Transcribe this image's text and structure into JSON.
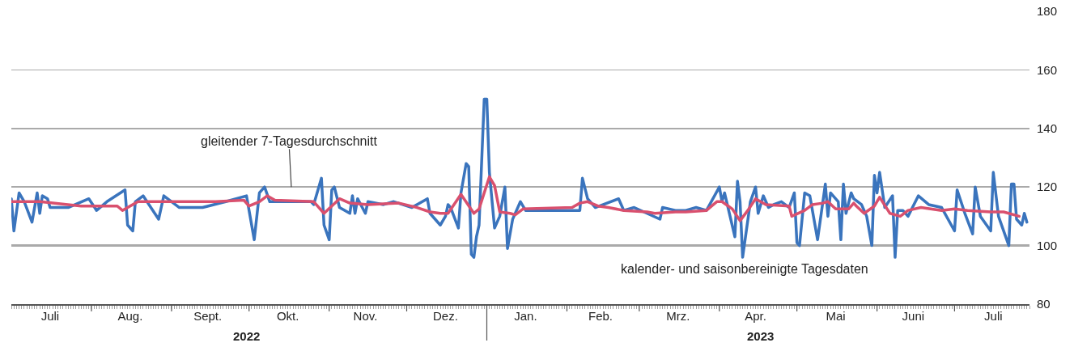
{
  "chart_data": {
    "type": "line",
    "legend": false,
    "grid": "y",
    "marker": "none",
    "line_style": "solid",
    "xlim": [
      "2022-07-01",
      "2023-07-30"
    ],
    "xticks": [
      {
        "value": "2022-07-16",
        "label": "Juli"
      },
      {
        "value": "2022-08-16",
        "label": "Aug."
      },
      {
        "value": "2022-09-15",
        "label": "Sept."
      },
      {
        "value": "2022-10-16",
        "label": "Okt."
      },
      {
        "value": "2022-11-15",
        "label": "Nov."
      },
      {
        "value": "2022-12-16",
        "label": "Dez."
      },
      {
        "value": "2023-01-16",
        "label": "Jan."
      },
      {
        "value": "2023-02-14",
        "label": "Feb."
      },
      {
        "value": "2023-03-16",
        "label": "Mrz."
      },
      {
        "value": "2023-04-15",
        "label": "Apr."
      },
      {
        "value": "2023-05-16",
        "label": "Mai"
      },
      {
        "value": "2023-06-15",
        "label": "Juni"
      },
      {
        "value": "2023-07-16",
        "label": "Juli"
      },
      {
        "value": "2022-08-01",
        "label": null
      },
      {
        "value": "2022-09-01",
        "label": null
      },
      {
        "value": "2022-10-01",
        "label": null
      },
      {
        "value": "2022-11-01",
        "label": null
      },
      {
        "value": "2022-12-01",
        "label": null
      },
      {
        "value": "2023-02-01",
        "label": null
      },
      {
        "value": "2023-03-01",
        "label": null
      },
      {
        "value": "2023-04-01",
        "label": null
      },
      {
        "value": "2023-05-01",
        "label": null
      },
      {
        "value": "2023-06-01",
        "label": null
      },
      {
        "value": "2023-07-01",
        "label": null
      }
    ],
    "x2lim": [
      "2022-07-01",
      "2023-07-30"
    ],
    "x2ticks": [
      {
        "value": "2022-09-30",
        "label": "2022"
      },
      {
        "value": "2023-04-17",
        "label": "2023"
      },
      {
        "value": "2023-01-01",
        "label": null
      }
    ],
    "ylim": [
      80,
      180
    ],
    "yticks": [
      80,
      100,
      120,
      140,
      160,
      180
    ],
    "ref_lines": [
      {
        "axis": "y",
        "value": 100,
        "color": "#555555"
      }
    ],
    "series": [
      {
        "name": "kalender- und saisonbereinigte Tagesdaten",
        "color": "#3a74bd",
        "x": [
          "2022-07-01",
          "2022-07-02",
          "2022-07-04",
          "2022-07-06",
          "2022-07-09",
          "2022-07-11",
          "2022-07-12",
          "2022-07-13",
          "2022-07-15",
          "2022-07-16",
          "2022-07-23",
          "2022-07-31",
          "2022-08-03",
          "2022-08-07",
          "2022-08-14",
          "2022-08-15",
          "2022-08-17",
          "2022-08-18",
          "2022-08-21",
          "2022-08-27",
          "2022-08-29",
          "2022-09-04",
          "2022-09-13",
          "2022-09-22",
          "2022-09-30",
          "2022-10-03",
          "2022-10-05",
          "2022-10-07",
          "2022-10-09",
          "2022-10-25",
          "2022-10-26",
          "2022-10-29",
          "2022-10-30",
          "2022-11-01",
          "2022-11-02",
          "2022-11-03",
          "2022-11-05",
          "2022-11-09",
          "2022-11-10",
          "2022-11-11",
          "2022-11-12",
          "2022-11-15",
          "2022-11-16",
          "2022-11-22",
          "2022-11-26",
          "2022-12-03",
          "2022-12-09",
          "2022-12-10",
          "2022-12-14",
          "2022-12-16",
          "2022-12-17",
          "2022-12-18",
          "2022-12-21",
          "2022-12-22",
          "2022-12-24",
          "2022-12-25",
          "2022-12-26",
          "2022-12-27",
          "2022-12-28",
          "2022-12-29",
          "2022-12-31",
          "2023-01-01",
          "2023-01-02",
          "2023-01-04",
          "2023-01-06",
          "2023-01-08",
          "2023-01-09",
          "2023-01-11",
          "2023-01-14",
          "2023-01-16",
          "2023-02-06",
          "2023-02-07",
          "2023-02-09",
          "2023-02-12",
          "2023-02-21",
          "2023-02-23",
          "2023-02-27",
          "2023-03-04",
          "2023-03-09",
          "2023-03-10",
          "2023-03-15",
          "2023-03-19",
          "2023-03-23",
          "2023-03-27",
          "2023-04-01",
          "2023-04-02",
          "2023-04-03",
          "2023-04-07",
          "2023-04-08",
          "2023-04-09",
          "2023-04-10",
          "2023-04-13",
          "2023-04-15",
          "2023-04-16",
          "2023-04-18",
          "2023-04-20",
          "2023-04-22",
          "2023-04-25",
          "2023-04-28",
          "2023-04-30",
          "2023-05-01",
          "2023-05-02",
          "2023-05-04",
          "2023-05-06",
          "2023-05-09",
          "2023-05-12",
          "2023-05-13",
          "2023-05-14",
          "2023-05-17",
          "2023-05-18",
          "2023-05-19",
          "2023-05-20",
          "2023-05-22",
          "2023-05-23",
          "2023-05-26",
          "2023-05-28",
          "2023-05-30",
          "2023-05-31",
          "2023-06-01",
          "2023-06-02",
          "2023-06-04",
          "2023-06-07",
          "2023-06-08",
          "2023-06-09",
          "2023-06-11",
          "2023-06-13",
          "2023-06-17",
          "2023-06-21",
          "2023-06-26",
          "2023-07-01",
          "2023-07-02",
          "2023-07-05",
          "2023-07-08",
          "2023-07-09",
          "2023-07-11",
          "2023-07-15",
          "2023-07-16",
          "2023-07-18",
          "2023-07-22",
          "2023-07-23",
          "2023-07-24",
          "2023-07-25",
          "2023-07-27",
          "2023-07-28",
          "2023-07-29"
        ],
        "values": [
          116,
          105,
          118,
          115,
          108,
          118,
          111,
          117,
          116,
          113,
          113,
          116,
          112,
          115,
          119,
          107,
          105,
          115,
          117,
          109,
          117,
          113,
          113,
          115,
          117,
          102,
          118,
          120,
          115,
          115,
          114,
          123,
          107,
          102,
          119,
          120,
          113,
          111,
          117,
          111,
          116,
          111,
          115,
          114,
          115,
          113,
          116,
          111,
          107,
          110,
          114,
          113,
          106,
          118,
          128,
          127,
          97,
          96,
          103,
          107,
          150,
          150,
          125,
          106,
          110,
          120,
          99,
          109,
          115,
          112,
          112,
          123,
          116,
          113,
          116,
          112,
          113,
          111,
          109,
          113,
          112,
          112,
          113,
          112,
          120,
          115,
          118,
          103,
          122,
          115,
          96,
          115,
          120,
          111,
          117,
          113,
          114,
          115,
          113,
          118,
          101,
          100,
          118,
          117,
          102,
          121,
          110,
          118,
          115,
          102,
          121,
          111,
          118,
          116,
          114,
          110,
          100,
          124,
          118,
          125,
          113,
          117,
          96,
          112,
          112,
          110,
          117,
          114,
          113,
          105,
          119,
          111,
          104,
          120,
          110,
          105,
          125,
          110,
          100,
          121,
          121,
          109,
          107,
          111,
          108
        ]
      },
      {
        "name": "gleitender 7-Tagesdurchschnitt",
        "color": "#d9506e",
        "x": [
          "2022-07-01",
          "2022-07-12",
          "2022-07-28",
          "2022-08-11",
          "2022-08-13",
          "2022-08-19",
          "2022-08-30",
          "2022-09-18",
          "2022-09-29",
          "2022-10-01",
          "2022-10-05",
          "2022-10-08",
          "2022-10-11",
          "2022-10-26",
          "2022-10-30",
          "2022-11-02",
          "2022-11-05",
          "2022-11-09",
          "2022-11-16",
          "2022-11-28",
          "2022-12-05",
          "2022-12-10",
          "2022-12-14",
          "2022-12-17",
          "2022-12-22",
          "2022-12-27",
          "2022-12-29",
          "2023-01-02",
          "2023-01-04",
          "2023-01-06",
          "2023-01-10",
          "2023-01-12",
          "2023-01-15",
          "2023-02-03",
          "2023-02-06",
          "2023-02-09",
          "2023-02-13",
          "2023-02-17",
          "2023-02-23",
          "2023-03-04",
          "2023-03-07",
          "2023-03-15",
          "2023-03-19",
          "2023-03-27",
          "2023-03-31",
          "2023-04-02",
          "2023-04-06",
          "2023-04-09",
          "2023-04-12",
          "2023-04-15",
          "2023-04-19",
          "2023-04-28",
          "2023-04-29",
          "2023-05-04",
          "2023-05-07",
          "2023-05-11",
          "2023-05-13",
          "2023-05-16",
          "2023-05-21",
          "2023-05-23",
          "2023-05-24",
          "2023-05-27",
          "2023-05-31",
          "2023-06-02",
          "2023-06-06",
          "2023-06-10",
          "2023-06-13",
          "2023-06-18",
          "2023-06-26",
          "2023-07-01",
          "2023-07-06",
          "2023-07-15",
          "2023-07-20",
          "2023-07-26"
        ],
        "values": [
          115,
          115,
          113.5,
          113.5,
          112,
          115,
          115,
          115,
          115.5,
          113.5,
          115,
          117,
          115.5,
          115,
          111,
          113.5,
          116,
          114.5,
          114,
          114.5,
          113,
          111.5,
          111,
          111,
          117.5,
          111,
          112.5,
          123.5,
          120.5,
          111.5,
          111,
          110.5,
          112.5,
          113,
          114.5,
          115,
          113.5,
          113,
          112,
          111.5,
          111,
          111.5,
          111.5,
          112,
          115,
          115,
          112.5,
          108.5,
          112,
          116,
          114,
          113.5,
          110,
          112,
          114,
          114.5,
          115,
          112.5,
          112.5,
          114.5,
          113.5,
          111,
          113.5,
          116.5,
          111,
          110,
          112,
          113,
          112,
          112.5,
          112,
          111.5,
          111.5,
          110
        ]
      }
    ]
  }
}
